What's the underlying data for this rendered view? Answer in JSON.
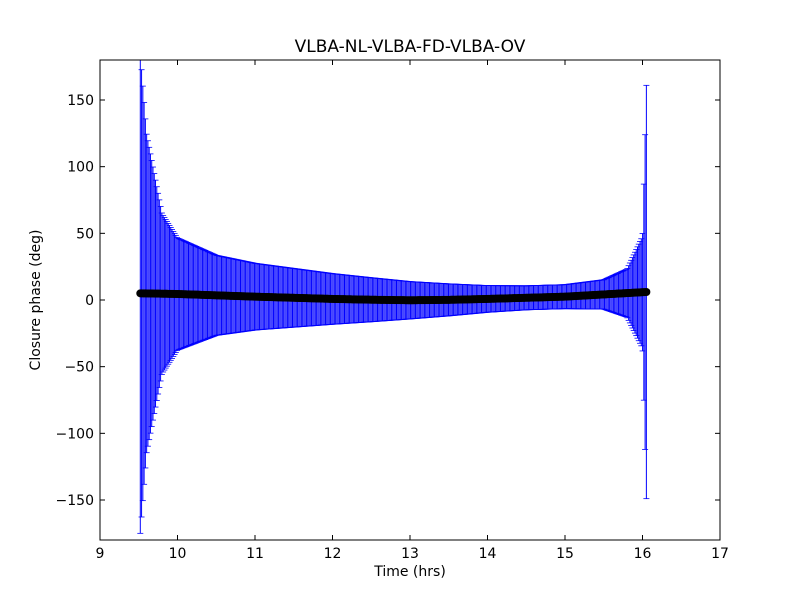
{
  "chart_data": {
    "type": "scatter",
    "title": "VLBA-NL-VLBA-FD-VLBA-OV",
    "xlabel": "Time (hrs)",
    "ylabel": "Closure phase (deg)",
    "xlim": [
      9,
      17
    ],
    "ylim": [
      -180,
      180
    ],
    "xticks": [
      9,
      10,
      11,
      12,
      13,
      14,
      15,
      16,
      17
    ],
    "yticks": [
      -150,
      -100,
      -50,
      0,
      50,
      100,
      150
    ],
    "ytick_labels": [
      "−150",
      "−100",
      "−50",
      "0",
      "50",
      "100",
      "150"
    ],
    "grid": false,
    "legend": "none",
    "series": [
      {
        "marker_color": "#000000",
        "errorbar_color": "#0000ff",
        "x_range": [
          9.52,
          16.05
        ],
        "n_points": 400,
        "phase_profile_deg": {
          "x": [
            9.52,
            10.0,
            11.0,
            12.0,
            12.5,
            13.0,
            13.5,
            14.0,
            15.0,
            16.05
          ],
          "y": [
            5,
            4.5,
            2.5,
            0.8,
            0.2,
            -0.2,
            0.1,
            0.8,
            2.5,
            6
          ]
        },
        "errorbar_profile_deg": {
          "x": [
            9.52,
            9.6,
            9.8,
            10.0,
            10.5,
            11.0,
            12.0,
            13.0,
            14.0,
            14.5,
            15.0,
            15.5,
            15.8,
            16.0,
            16.05
          ],
          "y": [
            180,
            120,
            60,
            42,
            30,
            25,
            19,
            14,
            10,
            9,
            9,
            11,
            18,
            42,
            155
          ]
        }
      }
    ]
  }
}
